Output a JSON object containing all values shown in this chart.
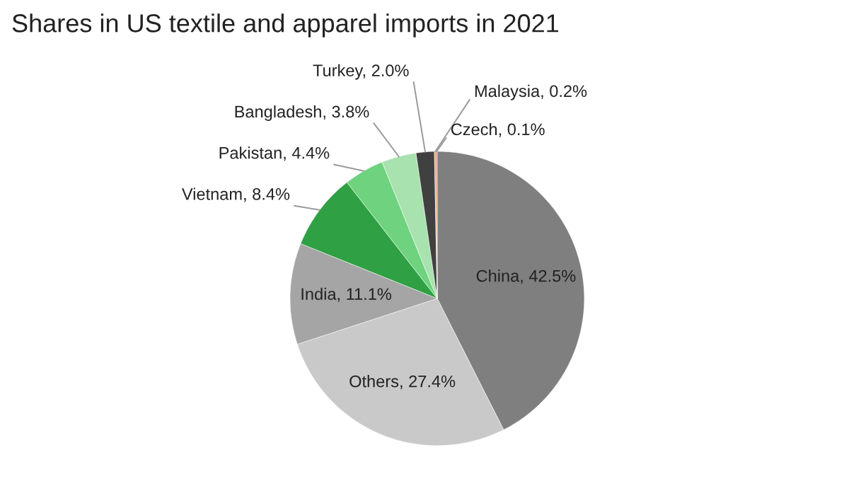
{
  "chart_data": {
    "type": "pie",
    "title": "Shares in US textile and apparel imports in 2021",
    "categories": [
      "China",
      "Others",
      "India",
      "Vietnam",
      "Pakistan",
      "Bangladesh",
      "Turkey",
      "Malaysia",
      "Czech"
    ],
    "values": [
      42.5,
      27.4,
      11.1,
      8.4,
      4.4,
      3.8,
      2.0,
      0.2,
      0.1
    ],
    "value_labels": [
      "42.5%",
      "27.4%",
      "11.1%",
      "8.4%",
      "4.4%",
      "3.8%",
      "2.0%",
      "0.2%",
      "0.1%"
    ],
    "colors": [
      "#7f7f7f",
      "#c9c9c9",
      "#a5a5a5",
      "#2fa043",
      "#6fd27e",
      "#a8e2ae",
      "#404040",
      "#f2a53a",
      "#c0504d"
    ],
    "legend": false
  }
}
